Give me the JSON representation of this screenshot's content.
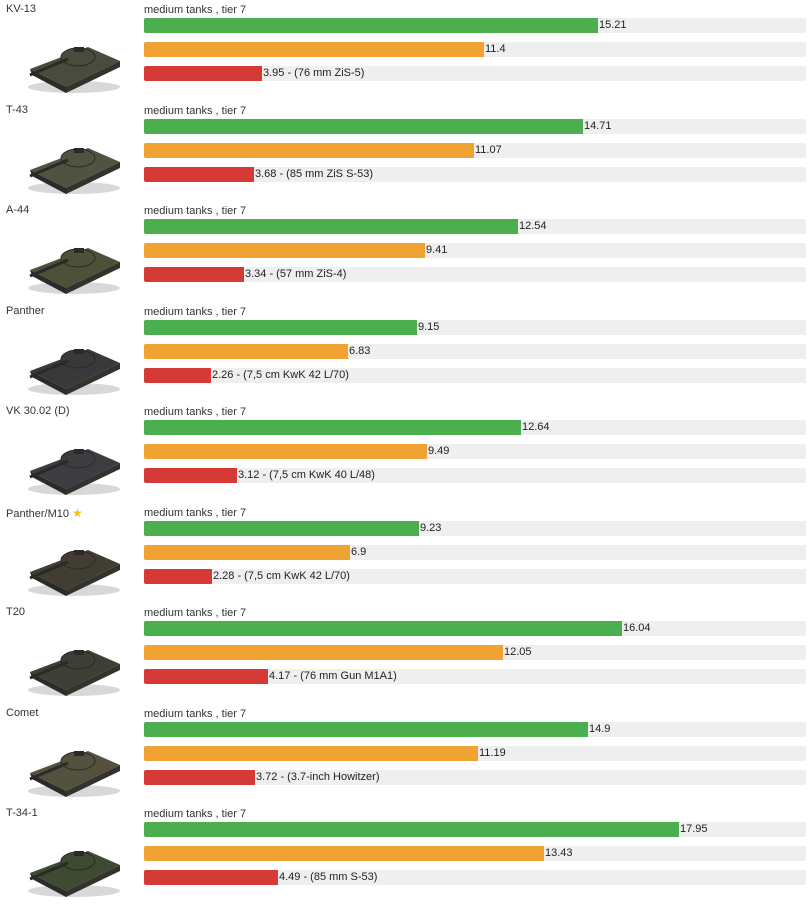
{
  "colors": {
    "bar_primary": "#4bae4f",
    "bar_secondary": "#f0a232",
    "bar_tertiary": "#d53a36",
    "track": "#efefef"
  },
  "scale_max": 22.2,
  "tanks": [
    {
      "name": "KV-13",
      "subtitle": "medium tanks , tier 7",
      "v1": 15.21,
      "v2": 11.4,
      "v3": 3.95,
      "l1": "15.21",
      "l2": "11.4",
      "l3": "3.95 - (76 mm ZiS-5)",
      "star": "",
      "color": "#4a4b3c",
      "icon": "tank-kv13-icon"
    },
    {
      "name": "T-43",
      "subtitle": "medium tanks , tier 7",
      "v1": 14.71,
      "v2": 11.07,
      "v3": 3.68,
      "l1": "14.71",
      "l2": "11.07",
      "l3": "3.68 - (85 mm ZiS S-53)",
      "star": "",
      "color": "#50533f",
      "icon": "tank-t43-icon"
    },
    {
      "name": "A-44",
      "subtitle": "medium tanks , tier 7",
      "v1": 12.54,
      "v2": 9.41,
      "v3": 3.34,
      "l1": "12.54",
      "l2": "9.41",
      "l3": "3.34 - (57 mm ZiS-4)",
      "star": "",
      "color": "#4c5138",
      "icon": "tank-a44-icon"
    },
    {
      "name": "Panther",
      "subtitle": "medium tanks , tier 7",
      "v1": 9.15,
      "v2": 6.83,
      "v3": 2.26,
      "l1": "9.15",
      "l2": "6.83",
      "l3": "2.26 - (7,5 cm KwK 42 L/70)",
      "star": "",
      "color": "#38393b",
      "icon": "tank-panther-icon"
    },
    {
      "name": "VK 30.02 (D)",
      "subtitle": "medium tanks , tier 7",
      "v1": 12.64,
      "v2": 9.49,
      "v3": 3.12,
      "l1": "12.64",
      "l2": "9.49",
      "l3": "3.12 - (7,5 cm KwK 40 L/48)",
      "star": "",
      "color": "#3c3d40",
      "icon": "tank-vk3002d-icon"
    },
    {
      "name": "Panther/M10",
      "subtitle": "medium tanks , tier 7",
      "v1": 9.23,
      "v2": 6.9,
      "v3": 2.28,
      "l1": "9.23",
      "l2": "6.9",
      "l3": "2.28 - (7,5 cm KwK 42 L/70)",
      "star": "★",
      "color": "#423d33",
      "icon": "tank-panther-m10-icon"
    },
    {
      "name": "T20",
      "subtitle": "medium tanks , tier 7",
      "v1": 16.04,
      "v2": 12.05,
      "v3": 4.17,
      "l1": "16.04",
      "l2": "12.05",
      "l3": "4.17 - (76 mm Gun M1A1)",
      "star": "",
      "color": "#3f3e34",
      "icon": "tank-t20-icon"
    },
    {
      "name": "Comet",
      "subtitle": "medium tanks , tier 7",
      "v1": 14.9,
      "v2": 11.19,
      "v3": 3.72,
      "l1": "14.9",
      "l2": "11.19",
      "l3": "3.72 - (3.7-inch Howitzer)",
      "star": "",
      "color": "#55513f",
      "icon": "tank-comet-icon"
    },
    {
      "name": "T-34-1",
      "subtitle": "medium tanks , tier 7",
      "v1": 17.95,
      "v2": 13.43,
      "v3": 4.49,
      "l1": "17.95",
      "l2": "13.43",
      "l3": "4.49 - (85 mm S-53)",
      "star": "",
      "color": "#3e4a32",
      "icon": "tank-t341-icon"
    }
  ]
}
